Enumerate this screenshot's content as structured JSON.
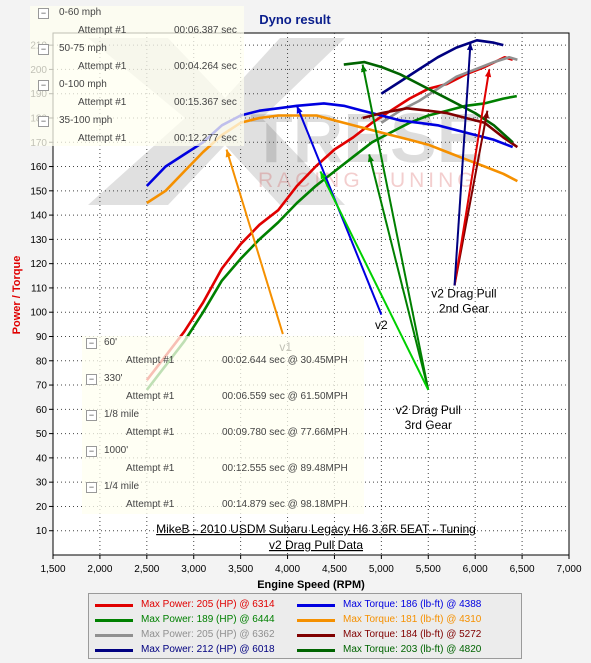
{
  "window": {
    "title": "Dyno result"
  },
  "accel_tree": {
    "groups": [
      {
        "label": "0-60 mph",
        "attempt": "Attempt #1",
        "time": "00:06.387 sec"
      },
      {
        "label": "50-75 mph",
        "attempt": "Attempt #1",
        "time": "00:04.264 sec"
      },
      {
        "label": "0-100 mph",
        "attempt": "Attempt #1",
        "time": "00:15.367 sec"
      },
      {
        "label": "35-100 mph",
        "attempt": "Attempt #1",
        "time": "00:12.277 sec"
      }
    ]
  },
  "drag_tree": {
    "groups": [
      {
        "label": "60'",
        "attempt": "Attempt #1",
        "time": "00:02.644 sec @ 30.45MPH"
      },
      {
        "label": "330'",
        "attempt": "Attempt #1",
        "time": "00:06.559 sec @ 61.50MPH"
      },
      {
        "label": "1/8 mile",
        "attempt": "Attempt #1",
        "time": "00:09.780 sec @ 77.66MPH"
      },
      {
        "label": "1000'",
        "attempt": "Attempt #1",
        "time": "00:12.555 sec @ 89.48MPH"
      },
      {
        "label": "1/4 mile",
        "attempt": "Attempt #1",
        "time": "00:14.879 sec @ 98.18MPH"
      }
    ]
  },
  "watermark": {
    "text_big": "TRESE",
    "text_small": "RACING TUNING"
  },
  "chart_data": {
    "type": "line",
    "title": "Dyno result",
    "subtitle_line1": "MikeB - 2010 USDM Subaru Legacy H6 3.6R 5EAT - Tuning",
    "subtitle_line2": "v2 Drag Pull Data",
    "xlabel": "Engine Speed (RPM)",
    "ylabel": "Power / Torque",
    "xlim": [
      1500,
      7000
    ],
    "ylim": [
      0,
      215
    ],
    "xticks": [
      "1,500",
      "2,000",
      "2,500",
      "3,000",
      "3,500",
      "4,000",
      "4,500",
      "5,000",
      "5,500",
      "6,000",
      "6,500",
      "7,000"
    ],
    "yticks": [
      "10",
      "20",
      "30",
      "40",
      "50",
      "60",
      "70",
      "80",
      "90",
      "100",
      "110",
      "120",
      "130",
      "140",
      "150",
      "160",
      "170",
      "180",
      "190",
      "200",
      "210"
    ],
    "grid": true,
    "series": [
      {
        "name": "Max Power: 205 (HP) @ 6314",
        "color": "#e00000",
        "kind": "power",
        "points": [
          [
            2500,
            72
          ],
          [
            2700,
            82
          ],
          [
            2900,
            92
          ],
          [
            3100,
            104
          ],
          [
            3300,
            118
          ],
          [
            3500,
            128
          ],
          [
            3700,
            136
          ],
          [
            3900,
            142
          ],
          [
            4100,
            152
          ],
          [
            4300,
            160
          ],
          [
            4500,
            167
          ],
          [
            4700,
            172
          ],
          [
            4900,
            178
          ],
          [
            5100,
            183
          ],
          [
            5300,
            188
          ],
          [
            5500,
            192
          ],
          [
            5700,
            194
          ],
          [
            5900,
            198
          ],
          [
            6100,
            201
          ],
          [
            6314,
            205
          ],
          [
            6400,
            204
          ]
        ]
      },
      {
        "name": "Max Power: 189 (HP) @ 6444",
        "color": "#008000",
        "kind": "power",
        "points": [
          [
            2500,
            68
          ],
          [
            2700,
            78
          ],
          [
            2900,
            88
          ],
          [
            3100,
            100
          ],
          [
            3300,
            113
          ],
          [
            3500,
            122
          ],
          [
            3700,
            130
          ],
          [
            3900,
            137
          ],
          [
            4100,
            145
          ],
          [
            4300,
            152
          ],
          [
            4500,
            158
          ],
          [
            4700,
            164
          ],
          [
            4900,
            170
          ],
          [
            5100,
            174
          ],
          [
            5300,
            178
          ],
          [
            5500,
            181
          ],
          [
            5700,
            183
          ],
          [
            5900,
            185
          ],
          [
            6100,
            186
          ],
          [
            6300,
            188
          ],
          [
            6444,
            189
          ]
        ]
      },
      {
        "name": "Max Power: 205 (HP) @ 6362",
        "color": "#909090",
        "kind": "power",
        "points": [
          [
            5000,
            178
          ],
          [
            5200,
            183
          ],
          [
            5400,
            187
          ],
          [
            5600,
            192
          ],
          [
            5800,
            197
          ],
          [
            6000,
            200
          ],
          [
            6200,
            203
          ],
          [
            6362,
            205
          ],
          [
            6450,
            204
          ]
        ]
      },
      {
        "name": "Max Power: 212 (HP) @ 6018",
        "color": "#000080",
        "kind": "power",
        "points": [
          [
            5000,
            190
          ],
          [
            5200,
            195
          ],
          [
            5400,
            200
          ],
          [
            5600,
            205
          ],
          [
            5800,
            209
          ],
          [
            6018,
            212
          ],
          [
            6200,
            211
          ],
          [
            6300,
            210
          ]
        ]
      },
      {
        "name": "Max Torque: 186 (lb-ft) @ 4388",
        "color": "#0000e0",
        "kind": "torque",
        "points": [
          [
            2500,
            152
          ],
          [
            2700,
            160
          ],
          [
            2900,
            165
          ],
          [
            3100,
            170
          ],
          [
            3300,
            177
          ],
          [
            3500,
            181
          ],
          [
            3700,
            183
          ],
          [
            3900,
            184
          ],
          [
            4100,
            185
          ],
          [
            4388,
            186
          ],
          [
            4600,
            185
          ],
          [
            4800,
            183
          ],
          [
            5000,
            181
          ],
          [
            5200,
            179
          ],
          [
            5400,
            178
          ],
          [
            5600,
            177
          ],
          [
            5800,
            175
          ],
          [
            6000,
            173
          ],
          [
            6200,
            171
          ],
          [
            6400,
            168
          ]
        ]
      },
      {
        "name": "Max Torque: 181 (lb-ft) @ 4310",
        "color": "#f59000",
        "kind": "torque",
        "points": [
          [
            2500,
            145
          ],
          [
            2700,
            150
          ],
          [
            2900,
            158
          ],
          [
            3100,
            166
          ],
          [
            3300,
            173
          ],
          [
            3500,
            178
          ],
          [
            3700,
            180
          ],
          [
            3900,
            181
          ],
          [
            4100,
            181
          ],
          [
            4310,
            181
          ],
          [
            4500,
            179
          ],
          [
            4700,
            177
          ],
          [
            4900,
            175
          ],
          [
            5100,
            173
          ],
          [
            5300,
            171
          ],
          [
            5500,
            169
          ],
          [
            5700,
            166
          ],
          [
            5900,
            163
          ],
          [
            6100,
            160
          ],
          [
            6300,
            157
          ],
          [
            6450,
            154
          ]
        ]
      },
      {
        "name": "Max Torque: 184 (lb-ft) @ 5272",
        "color": "#800000",
        "kind": "torque",
        "points": [
          [
            4800,
            180
          ],
          [
            5000,
            182
          ],
          [
            5272,
            184
          ],
          [
            5500,
            183
          ],
          [
            5700,
            182
          ],
          [
            5900,
            180
          ],
          [
            6100,
            178
          ],
          [
            6300,
            172
          ],
          [
            6450,
            168
          ]
        ]
      },
      {
        "name": "Max Torque: 203 (lb-ft) @ 4820",
        "color": "#006400",
        "kind": "torque",
        "points": [
          [
            4600,
            202
          ],
          [
            4820,
            203
          ],
          [
            5000,
            201
          ],
          [
            5200,
            198
          ],
          [
            5400,
            194
          ],
          [
            5600,
            190
          ],
          [
            5800,
            186
          ],
          [
            6000,
            182
          ],
          [
            6200,
            177
          ],
          [
            6400,
            170
          ]
        ]
      }
    ],
    "annotations": [
      {
        "lines": [
          "v1"
        ],
        "label_at": [
          3980,
          84
        ],
        "color": "#f59000",
        "tip": [
          3950,
          91
        ],
        "targets": [
          [
            3350,
            167
          ]
        ]
      },
      {
        "lines": [
          "v2"
        ],
        "label_at": [
          5000,
          93
        ],
        "color": "#0000e0",
        "tip": [
          5000,
          99
        ],
        "targets": [
          [
            4100,
            185
          ]
        ]
      },
      {
        "lines": [
          "v2 Drag Pull",
          "3rd Gear"
        ],
        "label_at": [
          5500,
          58
        ],
        "color": "#008000",
        "tip": [
          5500,
          68
        ],
        "targets": [
          [
            4800,
            202
          ],
          [
            4870,
            165
          ]
        ]
      },
      {
        "lines": [
          "v2 Drag Pull",
          "2nd Gear"
        ],
        "label_at": [
          5880,
          106
        ],
        "color": "#800000",
        "tip": [
          5780,
          111
        ],
        "targets": [
          [
            6130,
            183
          ]
        ]
      },
      {
        "lines": [],
        "color": "#00d000",
        "tip": [
          5500,
          68
        ],
        "targets": [
          [
            4350,
            158
          ]
        ]
      },
      {
        "lines": [],
        "color": "#e00000",
        "tip": [
          5780,
          111
        ],
        "targets": [
          [
            6150,
            200
          ]
        ]
      },
      {
        "lines": [],
        "color": "#000080",
        "tip": [
          5780,
          111
        ],
        "targets": [
          [
            5950,
            211
          ]
        ]
      }
    ]
  }
}
